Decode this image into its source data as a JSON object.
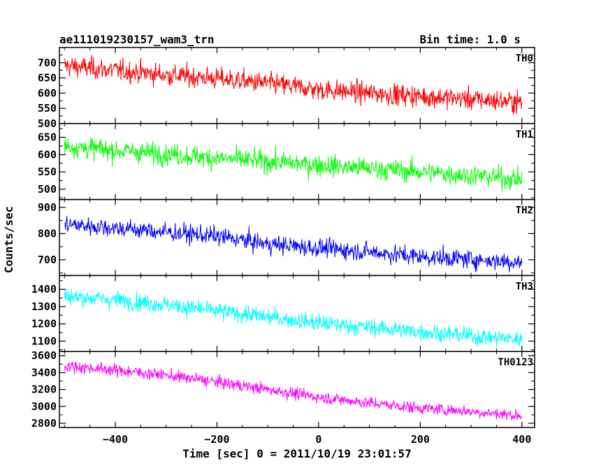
{
  "chart_data": {
    "type": "line",
    "title": "ae111019230157_wam3_trn",
    "bin_time_label": "Bin time: 1.0 s",
    "xlabel": "Time [sec] 0 = 2011/10/19 23:01:57",
    "ylabel": "Counts/sec",
    "xlim": [
      -510,
      425
    ],
    "x_range": [
      -500,
      400
    ],
    "x_ticks": [
      -400,
      -200,
      0,
      200,
      400
    ],
    "x_tick_labels": [
      "−400",
      "−200",
      "0",
      "200",
      "400"
    ],
    "grid": false,
    "panels": [
      {
        "name": "TH0",
        "color": "#ff0000",
        "ylim": [
          500,
          750
        ],
        "y_ticks": [
          500,
          550,
          600,
          650,
          700
        ],
        "y_tick_labels": [
          "500",
          "550",
          "600",
          "650",
          "700"
        ],
        "trend": {
          "x": [
            -500,
            -400,
            -300,
            -200,
            -100,
            0,
            100,
            200,
            300,
            400
          ],
          "y": [
            690,
            675,
            660,
            648,
            632,
            612,
            600,
            590,
            580,
            570
          ]
        },
        "noise_amplitude": 30
      },
      {
        "name": "TH1",
        "color": "#00ff00",
        "ylim": [
          470,
          690
        ],
        "y_ticks": [
          500,
          550,
          600,
          650
        ],
        "y_tick_labels": [
          "500",
          "550",
          "600",
          "650"
        ],
        "trend": {
          "x": [
            -500,
            -400,
            -300,
            -200,
            -100,
            0,
            100,
            200,
            300,
            400
          ],
          "y": [
            625,
            612,
            602,
            590,
            580,
            570,
            560,
            550,
            540,
            528
          ]
        },
        "noise_amplitude": 26
      },
      {
        "name": "TH2",
        "color": "#0000ff",
        "ylim": [
          640,
          930
        ],
        "y_ticks": [
          700,
          800,
          900
        ],
        "y_tick_labels": [
          "700",
          "800",
          "900"
        ],
        "trend": {
          "x": [
            -500,
            -400,
            -300,
            -200,
            -100,
            0,
            100,
            200,
            300,
            400
          ],
          "y": [
            835,
            822,
            805,
            790,
            760,
            745,
            730,
            712,
            702,
            690
          ]
        },
        "noise_amplitude": 30
      },
      {
        "name": "TH3",
        "color": "#00ffff",
        "ylim": [
          1040,
          1480
        ],
        "y_ticks": [
          1100,
          1200,
          1300,
          1400
        ],
        "y_tick_labels": [
          "1100",
          "1200",
          "1300",
          "1400"
        ],
        "trend": {
          "x": [
            -500,
            -400,
            -300,
            -200,
            -100,
            0,
            100,
            200,
            300,
            400
          ],
          "y": [
            1360,
            1340,
            1310,
            1275,
            1240,
            1205,
            1180,
            1155,
            1130,
            1110
          ]
        },
        "noise_amplitude": 42
      },
      {
        "name": "TH0123",
        "color": "#ff00ff",
        "ylim": [
          2750,
          3650
        ],
        "y_ticks": [
          2800,
          3000,
          3200,
          3400,
          3600
        ],
        "y_tick_labels": [
          "2800",
          "3000",
          "3200",
          "3400",
          "3600"
        ],
        "trend": {
          "x": [
            -500,
            -400,
            -300,
            -200,
            -100,
            0,
            100,
            200,
            300,
            400
          ],
          "y": [
            3480,
            3430,
            3370,
            3290,
            3200,
            3110,
            3040,
            2980,
            2940,
            2890
          ]
        },
        "noise_amplitude": 60
      }
    ]
  }
}
